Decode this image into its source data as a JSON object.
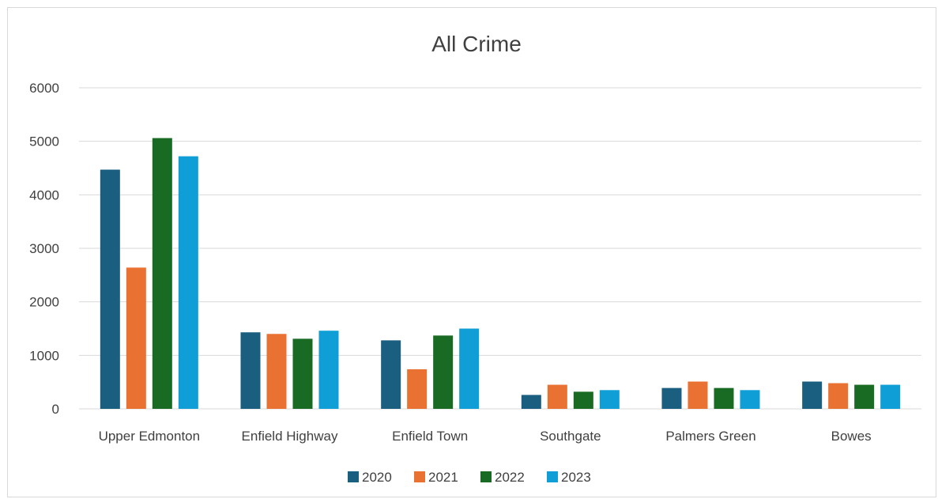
{
  "chart_data": {
    "type": "bar",
    "title": "All Crime",
    "xlabel": "",
    "ylabel": "",
    "ylim": [
      0,
      6000
    ],
    "yticks": [
      0,
      1000,
      2000,
      3000,
      4000,
      5000,
      6000
    ],
    "grid": true,
    "legend_position": "bottom",
    "categories": [
      "Upper Edmonton",
      "Enfield Highway",
      "Enfield Town",
      "Southgate",
      "Palmers Green",
      "Bowes"
    ],
    "series": [
      {
        "name": "2020",
        "color": "#1a5e80",
        "values": [
          4470,
          1430,
          1280,
          260,
          390,
          510
        ]
      },
      {
        "name": "2021",
        "color": "#e97132",
        "values": [
          2640,
          1400,
          740,
          450,
          510,
          480
        ]
      },
      {
        "name": "2022",
        "color": "#196b24",
        "values": [
          5060,
          1310,
          1370,
          320,
          390,
          450
        ]
      },
      {
        "name": "2023",
        "color": "#0f9ed5",
        "values": [
          4720,
          1460,
          1500,
          350,
          350,
          450
        ]
      }
    ]
  }
}
